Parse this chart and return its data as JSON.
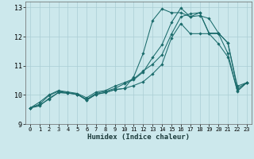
{
  "xlabel": "Humidex (Indice chaleur)",
  "bg_color": "#cce8ec",
  "grid_color": "#aacdd4",
  "line_color": "#1a6b6b",
  "xlim": [
    -0.5,
    23.5
  ],
  "ylim": [
    9,
    13.2
  ],
  "yticks": [
    9,
    10,
    11,
    12,
    13
  ],
  "xticks": [
    0,
    1,
    2,
    3,
    4,
    5,
    6,
    7,
    8,
    9,
    10,
    11,
    12,
    13,
    14,
    15,
    16,
    17,
    18,
    19,
    20,
    21,
    22,
    23
  ],
  "series": [
    [
      9.55,
      9.62,
      9.88,
      10.08,
      10.06,
      10.02,
      9.82,
      10.02,
      10.08,
      10.18,
      10.22,
      10.32,
      10.45,
      10.72,
      11.05,
      11.95,
      12.45,
      12.1,
      12.1,
      12.1,
      11.75,
      11.3,
      10.15,
      10.42
    ],
    [
      9.55,
      9.65,
      9.85,
      10.08,
      10.06,
      10.02,
      9.82,
      10.02,
      10.08,
      10.18,
      10.22,
      10.62,
      11.42,
      12.55,
      12.95,
      12.82,
      12.82,
      12.68,
      12.82,
      12.1,
      12.1,
      11.42,
      10.12,
      10.42
    ],
    [
      9.55,
      9.75,
      10.0,
      10.15,
      10.1,
      10.05,
      9.9,
      10.1,
      10.15,
      10.3,
      10.42,
      10.55,
      10.82,
      11.05,
      11.38,
      12.08,
      12.68,
      12.78,
      12.82,
      12.12,
      12.12,
      11.78,
      10.3,
      10.42
    ],
    [
      9.55,
      9.68,
      9.98,
      10.12,
      10.08,
      10.02,
      9.85,
      10.05,
      10.12,
      10.22,
      10.38,
      10.52,
      10.78,
      11.28,
      11.72,
      12.48,
      12.98,
      12.68,
      12.72,
      12.62,
      12.12,
      11.78,
      10.22,
      10.42
    ]
  ]
}
